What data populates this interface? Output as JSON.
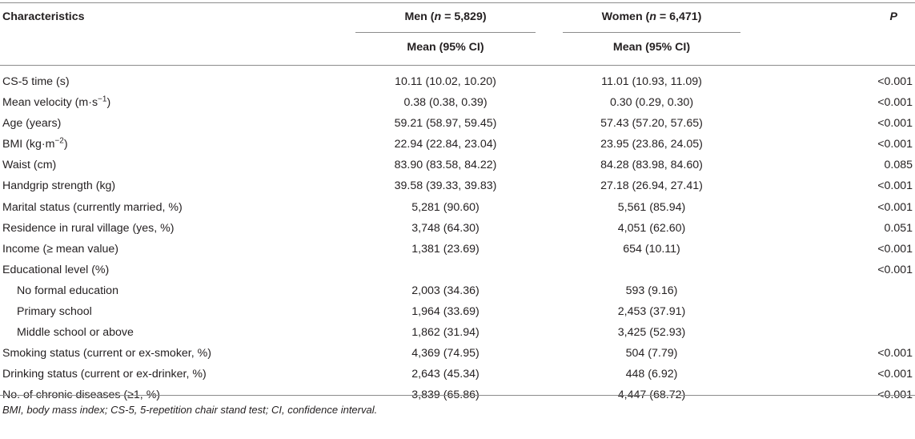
{
  "table": {
    "header": {
      "characteristics": "Characteristics",
      "men_prefix": "Men (",
      "men_n_label": "n",
      "men_suffix": " = 5,829)",
      "women_prefix": "Women (",
      "women_n_label": "n",
      "women_suffix": " = 6,471)",
      "p": "P",
      "mean_ci_men": "Mean (95% CI)",
      "mean_ci_women": "Mean (95% CI)"
    },
    "rows": [
      {
        "label": "CS-5 time (s)",
        "men": "10.11 (10.02, 10.20)",
        "women": "11.01 (10.93, 11.09)",
        "p": "<0.001",
        "indent": false
      },
      {
        "label": "Mean velocity (m·s−1)",
        "men": "0.38 (0.38, 0.39)",
        "women": "0.30 (0.29, 0.30)",
        "p": "<0.001",
        "indent": false
      },
      {
        "label": "Age (years)",
        "men": "59.21 (58.97, 59.45)",
        "women": "57.43 (57.20, 57.65)",
        "p": "<0.001",
        "indent": false
      },
      {
        "label": "BMI (kg·m−2)",
        "men": "22.94 (22.84, 23.04)",
        "women": "23.95 (23.86, 24.05)",
        "p": "<0.001",
        "indent": false
      },
      {
        "label": "Waist (cm)",
        "men": "83.90 (83.58, 84.22)",
        "women": "84.28 (83.98, 84.60)",
        "p": "0.085",
        "indent": false
      },
      {
        "label": "Handgrip strength (kg)",
        "men": "39.58 (39.33, 39.83)",
        "women": "27.18 (26.94, 27.41)",
        "p": "<0.001",
        "indent": false
      },
      {
        "label": "Marital status (currently married, %)",
        "men": "5,281 (90.60)",
        "women": "5,561 (85.94)",
        "p": "<0.001",
        "indent": false
      },
      {
        "label": "Residence in rural village (yes, %)",
        "men": "3,748 (64.30)",
        "women": "4,051 (62.60)",
        "p": "0.051",
        "indent": false
      },
      {
        "label": "Income (≥ mean value)",
        "men": "1,381 (23.69)",
        "women": "654 (10.11)",
        "p": "<0.001",
        "indent": false
      },
      {
        "label": "Educational level (%)",
        "men": "",
        "women": "",
        "p": "<0.001",
        "indent": false
      },
      {
        "label": "No formal education",
        "men": "2,003 (34.36)",
        "women": "593 (9.16)",
        "p": "",
        "indent": true
      },
      {
        "label": "Primary school",
        "men": "1,964 (33.69)",
        "women": "2,453 (37.91)",
        "p": "",
        "indent": true
      },
      {
        "label": "Middle school or above",
        "men": "1,862 (31.94)",
        "women": "3,425 (52.93)",
        "p": "",
        "indent": true
      },
      {
        "label": "Smoking status (current or ex-smoker, %)",
        "men": "4,369 (74.95)",
        "women": "504 (7.79)",
        "p": "<0.001",
        "indent": false
      },
      {
        "label": "Drinking status (current or ex-drinker, %)",
        "men": "2,643 (45.34)",
        "women": "448 (6.92)",
        "p": "<0.001",
        "indent": false
      },
      {
        "label": "No. of chronic diseases (≥1, %)",
        "men": "3,839 (65.86)",
        "women": "4,447 (68.72)",
        "p": "<0.001",
        "indent": false
      }
    ],
    "footnote": "BMI, body mass index; CS-5, 5-repetition chair stand test; CI, confidence interval."
  }
}
